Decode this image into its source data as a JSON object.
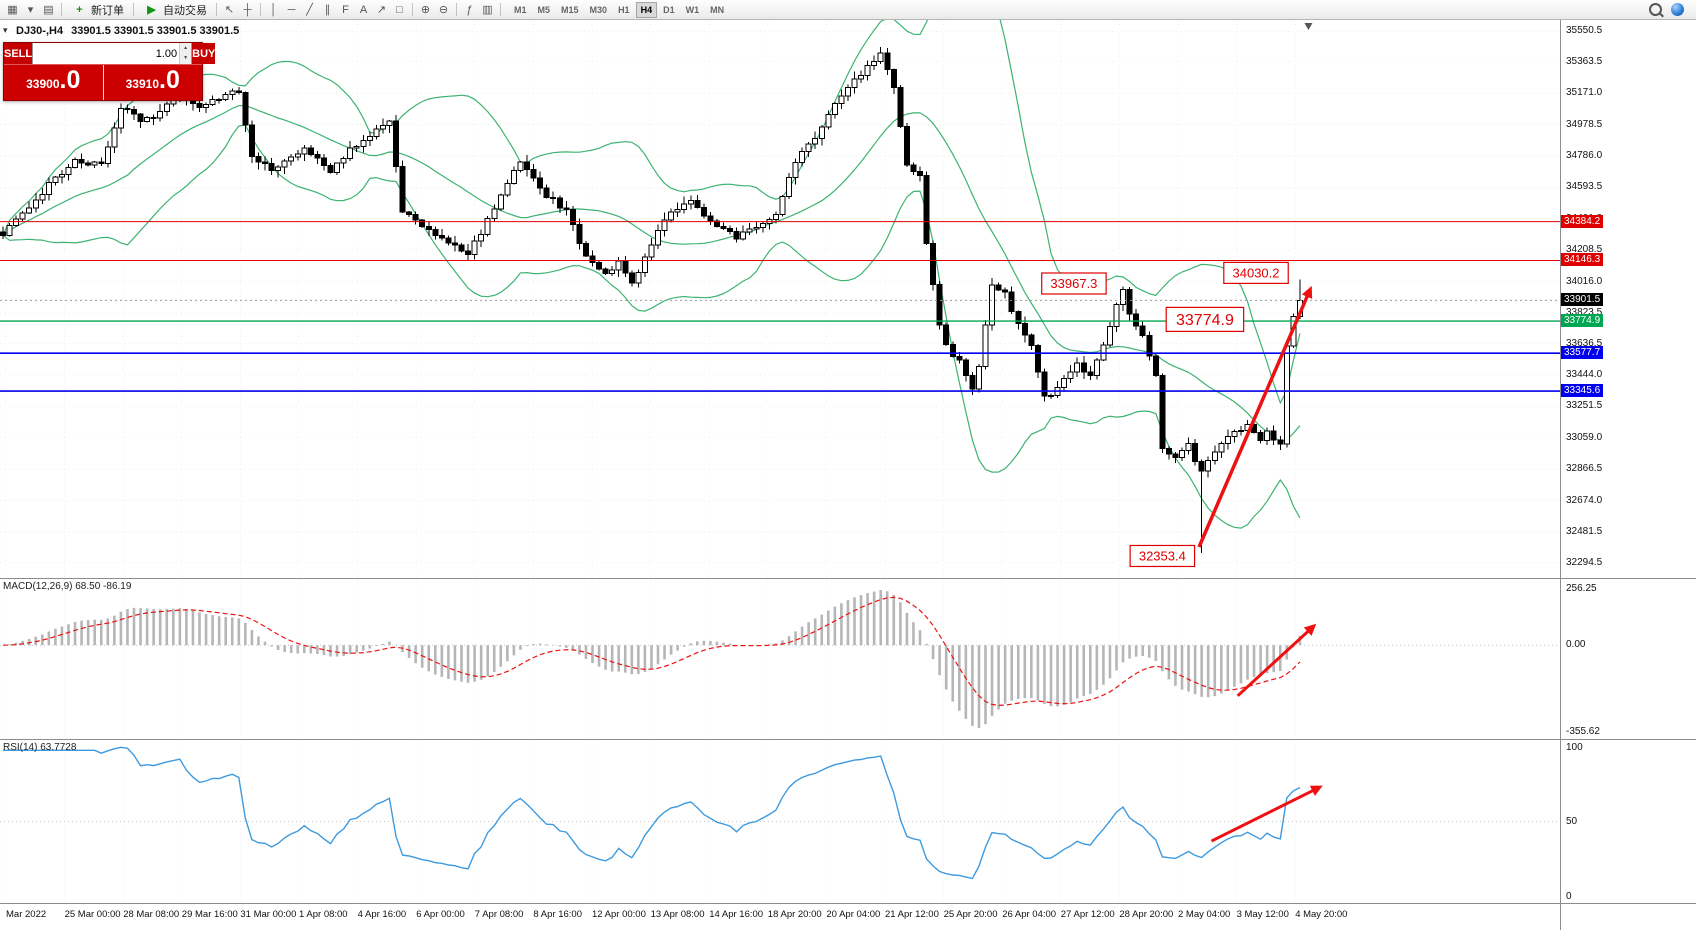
{
  "toolbar": {
    "new_order_label": "新订单",
    "auto_trading_label": "自动交易",
    "timeframes": [
      "M1",
      "M5",
      "M15",
      "M30",
      "H1",
      "H4",
      "D1",
      "W1",
      "MN"
    ],
    "active_timeframe": "H4",
    "icon_glyphs": {
      "new_chart": "▦",
      "profiles": "▤",
      "dropdown": "▾",
      "new_order_plus": "+",
      "autotrade_play": "▶",
      "cursor": "↖",
      "crosshair": "┼",
      "vline": "│",
      "hline": "─",
      "trendline": "╱",
      "channel": "∥",
      "fibonacci": "F",
      "text_tool": "A",
      "arrows_tool": "↗",
      "shapes": "□",
      "zoom_in": "⊕",
      "zoom_out": "⊖",
      "indicators": "ƒ",
      "templates": "▥",
      "step_up": "▲",
      "step_down": "▼",
      "collapse": "▾"
    }
  },
  "symbol_info": {
    "symbol": "DJ30-,H4",
    "quote_line": "33901.5 33901.5 33901.5 33901.5"
  },
  "trade_panel": {
    "sell_label": "SELL",
    "buy_label": "BUY",
    "lot": "1.00",
    "sell_price_main": "33900",
    "sell_price_big": ".0",
    "buy_price_main": "33910",
    "buy_price_big": ".0"
  },
  "chart_data": {
    "type": "candlestick",
    "symbol": "DJ30-,H4",
    "timeframe": "H4",
    "num_candles": 199,
    "close_anchors": [
      [
        0,
        34310
      ],
      [
        2,
        34390
      ],
      [
        5,
        34520
      ],
      [
        7,
        34610
      ],
      [
        11,
        34760
      ],
      [
        15,
        34730
      ],
      [
        18,
        35090
      ],
      [
        21,
        35010
      ],
      [
        23,
        35030
      ],
      [
        27,
        35180
      ],
      [
        30,
        35090
      ],
      [
        32,
        35120
      ],
      [
        36,
        35190
      ],
      [
        38,
        34790
      ],
      [
        41,
        34700
      ],
      [
        44,
        34780
      ],
      [
        46,
        34830
      ],
      [
        50,
        34700
      ],
      [
        53,
        34830
      ],
      [
        57,
        34950
      ],
      [
        59,
        34990
      ],
      [
        61,
        34450
      ],
      [
        64,
        34350
      ],
      [
        67,
        34290
      ],
      [
        71,
        34190
      ],
      [
        73,
        34320
      ],
      [
        76,
        34540
      ],
      [
        79,
        34760
      ],
      [
        82,
        34580
      ],
      [
        86,
        34450
      ],
      [
        89,
        34160
      ],
      [
        92,
        34060
      ],
      [
        94,
        34130
      ],
      [
        96,
        34000
      ],
      [
        99,
        34250
      ],
      [
        102,
        34450
      ],
      [
        105,
        34510
      ],
      [
        108,
        34380
      ],
      [
        112,
        34290
      ],
      [
        115,
        34350
      ],
      [
        118,
        34420
      ],
      [
        121,
        34760
      ],
      [
        124,
        34890
      ],
      [
        127,
        35120
      ],
      [
        130,
        35250
      ],
      [
        132,
        35340
      ],
      [
        134,
        35410
      ],
      [
        136,
        35200
      ],
      [
        137,
        34960
      ],
      [
        138,
        34740
      ],
      [
        140,
        34670
      ],
      [
        141,
        34260
      ],
      [
        143,
        33750
      ],
      [
        144,
        33620
      ],
      [
        146,
        33520
      ],
      [
        148,
        33360
      ],
      [
        149,
        33490
      ],
      [
        151,
        34000
      ],
      [
        153,
        33940
      ],
      [
        154,
        33840
      ],
      [
        157,
        33620
      ],
      [
        159,
        33300
      ],
      [
        161,
        33360
      ],
      [
        164,
        33520
      ],
      [
        166,
        33430
      ],
      [
        168,
        33620
      ],
      [
        170,
        33870
      ],
      [
        171,
        33965
      ],
      [
        172,
        33810
      ],
      [
        174,
        33680
      ],
      [
        176,
        33430
      ],
      [
        177,
        32980
      ],
      [
        179,
        32950
      ],
      [
        181,
        33010
      ],
      [
        183,
        32850
      ],
      [
        185,
        32980
      ],
      [
        187,
        33070
      ],
      [
        190,
        33140
      ],
      [
        192,
        33040
      ],
      [
        193,
        33110
      ],
      [
        195,
        33010
      ],
      [
        196,
        33620
      ],
      [
        197,
        33800
      ],
      [
        198,
        33901.5
      ]
    ],
    "key_points": {
      "last_close": 33901.5
    },
    "special_wicks": {
      "183": {
        "low": 32353.4
      },
      "198": {
        "high": 34030.2
      }
    },
    "price_axis": {
      "top_price": 35620,
      "bottom_price": 32200,
      "ticks": [
        35550.5,
        35363.5,
        35171.0,
        34978.5,
        34786.0,
        34593.5,
        34401.0,
        34208.5,
        34016.0,
        33823.5,
        33636.5,
        33444.0,
        33251.5,
        33059.0,
        32866.5,
        32674.0,
        32481.5,
        32294.5
      ]
    },
    "levels": [
      {
        "label": "34384.2",
        "price": 34384.2,
        "color": "#e00000",
        "width": 1,
        "style": "solid"
      },
      {
        "label": "34146.3",
        "price": 34146.3,
        "color": "#e00000",
        "width": 1,
        "style": "solid"
      },
      {
        "label": "33901.5",
        "price": 33901.5,
        "color": "#000000",
        "width": 1,
        "style": "current"
      },
      {
        "label": "33774.9",
        "price": 33774.9,
        "color": "#00a651",
        "width": 1.4,
        "style": "solid"
      },
      {
        "label": "33577.7",
        "price": 33577.7,
        "color": "#0000ee",
        "width": 1.6,
        "style": "solid"
      },
      {
        "label": "33345.6",
        "price": 33345.6,
        "color": "#0000ee",
        "width": 1.6,
        "style": "solid"
      }
    ],
    "bollinger": {
      "period": 20,
      "deviation": 2,
      "color": "#3CB371"
    },
    "annotations": [
      {
        "text": "33967.3",
        "index": 163.5,
        "price": 34005,
        "font": 13
      },
      {
        "text": "34030.2",
        "index": 191.3,
        "price": 34070,
        "font": 13
      },
      {
        "text": "33774.9",
        "index": 183.5,
        "price": 33785,
        "font": 16
      },
      {
        "text": "32353.4",
        "index": 177.0,
        "price": 32335,
        "font": 13
      }
    ],
    "arrows": {
      "chart": {
        "x1_index": 182.6,
        "y1_price": 32390,
        "x2_index": 199.8,
        "y2_price": 33990,
        "color": "#ee1111",
        "width": 3.5
      },
      "macd": {
        "x1_index": 188.5,
        "y1_frac": 0.73,
        "x2_index": 200.5,
        "y2_frac": 0.28,
        "color": "#ee1111",
        "width": 3
      },
      "rsi": {
        "x1_index": 184.5,
        "y1_frac": 0.62,
        "x2_index": 201.5,
        "y2_frac": 0.28,
        "color": "#ee1111",
        "width": 3
      }
    },
    "macd": {
      "label": "MACD(12,26,9) 68.50 -86.19",
      "params": [
        12,
        26,
        9
      ],
      "value": 68.5,
      "signal_value": -86.19,
      "scale": {
        "top": "256.25",
        "zero": "0.00",
        "bottom": "-355.62"
      },
      "histogram_color": "#b6b6b6",
      "signal_color": "#ee1111"
    },
    "rsi": {
      "label": "RSI(14) 63.7728",
      "period": 14,
      "value": 63.7728,
      "scale": {
        "top": "100",
        "mid": "50",
        "bottom": "0"
      },
      "color": "#3E9ADE"
    },
    "time_axis": [
      "Mar 2022",
      "25 Mar 00:00",
      "28 Mar 08:00",
      "29 Mar 16:00",
      "31 Mar 00:00",
      "1 Apr 08:00",
      "4 Apr 16:00",
      "6 Apr 00:00",
      "7 Apr 08:00",
      "8 Apr 16:00",
      "12 Apr 00:00",
      "13 Apr 08:00",
      "14 Apr 16:00",
      "18 Apr 20:00",
      "20 Apr 04:00",
      "21 Apr 12:00",
      "25 Apr 20:00",
      "26 Apr 04:00",
      "27 Apr 12:00",
      "28 Apr 20:00",
      "2 May 04:00",
      "3 May 12:00",
      "4 May 20:00"
    ],
    "colors": {
      "bull": "#ffffff",
      "bear": "#000000",
      "wick": "#000000",
      "grid": "#ededed",
      "annotation": "#e00000"
    }
  }
}
